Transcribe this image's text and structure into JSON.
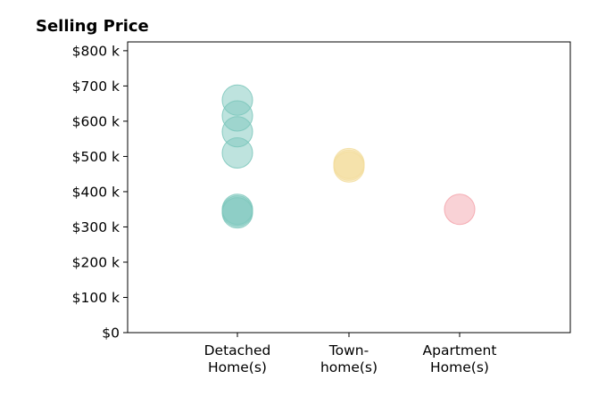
{
  "chart_data": {
    "type": "scatter",
    "title": "Selling Price",
    "xlabel": "",
    "ylabel": "",
    "ylim": [
      0,
      825000
    ],
    "y_ticks": [
      0,
      100000,
      200000,
      300000,
      400000,
      500000,
      600000,
      700000,
      800000
    ],
    "y_tick_labels": [
      "$0",
      "$100 k",
      "$200 k",
      "$300 k",
      "$400 k",
      "$500 k",
      "$600 k",
      "$700 k",
      "$800 k"
    ],
    "categories": [
      [
        "Detached",
        "Home(s)"
      ],
      [
        "Town-",
        "home(s)"
      ],
      [
        "Apartment",
        "Home(s)"
      ]
    ],
    "grid": false,
    "legend": "none",
    "series": [
      {
        "category_index": 0,
        "color": "#7ec8bd",
        "values": [
          660000,
          615000,
          570000,
          510000,
          350000,
          345000,
          340000
        ]
      },
      {
        "category_index": 1,
        "color": "#f3dea0",
        "values": [
          480000,
          475000,
          470000
        ]
      },
      {
        "category_index": 2,
        "color": "#f4a5ad",
        "values": [
          350000
        ]
      }
    ]
  }
}
